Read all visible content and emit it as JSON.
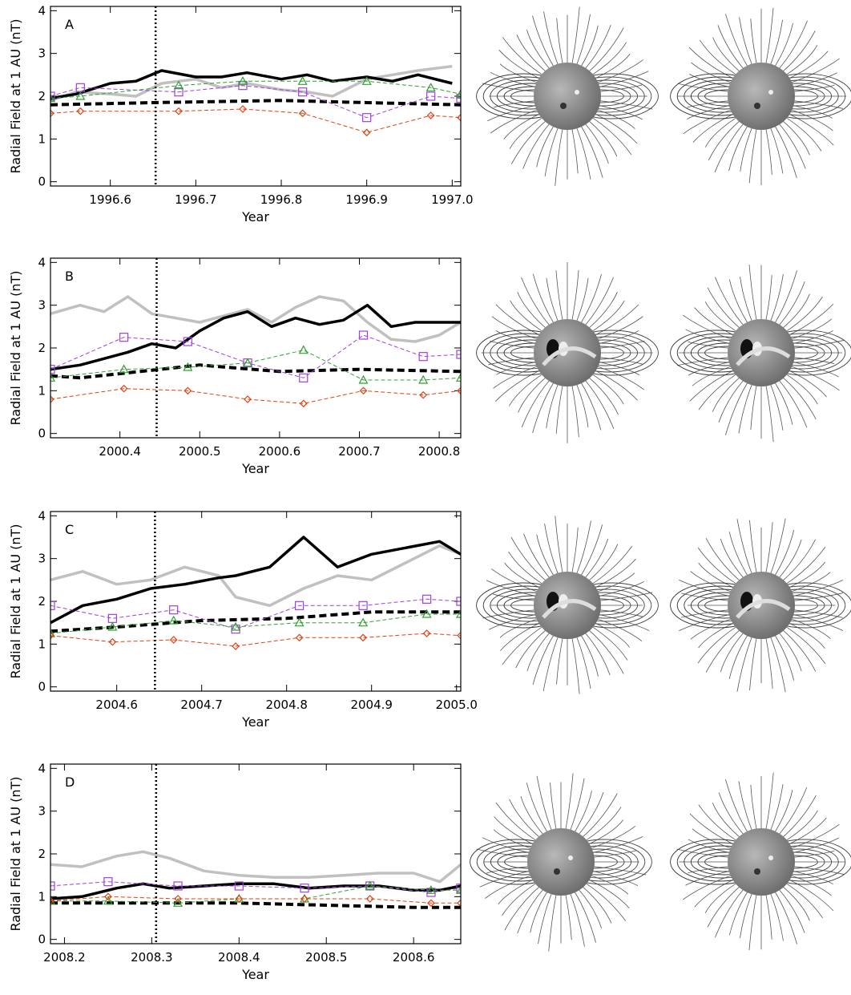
{
  "chart_data": [
    {
      "type": "line",
      "panel_label": "A",
      "xlabel": "Year",
      "ylabel": "Radial Field at 1 AU (nT)",
      "xlim": [
        1996.53,
        1997.01
      ],
      "ylim": [
        -0.1,
        4.1
      ],
      "xticks": [
        1996.6,
        1996.7,
        1996.8,
        1996.9,
        {
          "value": 1997.0,
          "label": "1997.0"
        }
      ],
      "yticks": [
        0,
        1,
        2,
        3,
        4
      ],
      "vline": 1996.653,
      "series": [
        {
          "color": "#c0c0c0",
          "style": "thick",
          "marker": "none",
          "x": [
            1996.53,
            1996.56,
            1996.6,
            1996.63,
            1996.66,
            1996.7,
            1996.73,
            1996.76,
            1996.8,
            1996.83,
            1996.86,
            1996.9,
            1996.93,
            1996.96,
            1997.0
          ],
          "values": [
            1.9,
            2.1,
            2.05,
            2.0,
            2.3,
            2.4,
            2.2,
            2.3,
            2.15,
            2.1,
            2.0,
            2.4,
            2.5,
            2.6,
            2.7
          ]
        },
        {
          "color": "#000000",
          "style": "thick",
          "marker": "none",
          "x": [
            1996.53,
            1996.56,
            1996.6,
            1996.63,
            1996.66,
            1996.7,
            1996.73,
            1996.76,
            1996.8,
            1996.83,
            1996.86,
            1996.9,
            1996.93,
            1996.96,
            1997.0
          ],
          "values": [
            1.95,
            2.05,
            2.3,
            2.35,
            2.6,
            2.45,
            2.45,
            2.55,
            2.4,
            2.5,
            2.35,
            2.45,
            2.35,
            2.5,
            2.3
          ]
        },
        {
          "color": "#000000",
          "style": "thick-dashed",
          "marker": "none",
          "x": [
            1996.53,
            1996.65,
            1996.8,
            1996.9,
            1997.01
          ],
          "values": [
            1.8,
            1.85,
            1.9,
            1.85,
            1.8
          ]
        },
        {
          "color": "#a040e0",
          "style": "dashed",
          "marker": "square",
          "x": [
            1996.53,
            1996.565,
            1996.68,
            1996.755,
            1996.825,
            1996.9,
            1996.975,
            1997.01
          ],
          "values": [
            2.0,
            2.2,
            2.1,
            2.25,
            2.1,
            1.5,
            2.0,
            1.95
          ]
        },
        {
          "color": "#30a030",
          "style": "dashed",
          "marker": "triangle",
          "x": [
            1996.53,
            1996.565,
            1996.68,
            1996.755,
            1996.825,
            1996.9,
            1996.975,
            1997.01
          ],
          "values": [
            1.95,
            2.0,
            2.25,
            2.35,
            2.35,
            2.35,
            2.2,
            2.05
          ]
        },
        {
          "color": "#e04010",
          "style": "dashed",
          "marker": "diamond",
          "x": [
            1996.53,
            1996.565,
            1996.68,
            1996.755,
            1996.825,
            1996.9,
            1996.975,
            1997.01
          ],
          "values": [
            1.6,
            1.65,
            1.65,
            1.7,
            1.6,
            1.15,
            1.55,
            1.5
          ]
        }
      ]
    },
    {
      "type": "line",
      "panel_label": "B",
      "xlabel": "Year",
      "ylabel": "Radial Field at 1 AU (nT)",
      "xlim": [
        2000.313,
        2000.827
      ],
      "ylim": [
        -0.1,
        4.1
      ],
      "xticks": [
        2000.4,
        2000.5,
        2000.6,
        2000.7,
        2000.8
      ],
      "yticks": [
        0,
        1,
        2,
        3,
        4
      ],
      "vline": 2000.446,
      "series": [
        {
          "color": "#c0c0c0",
          "style": "thick",
          "marker": "none",
          "x": [
            2000.313,
            2000.35,
            2000.38,
            2000.41,
            2000.44,
            2000.47,
            2000.5,
            2000.53,
            2000.56,
            2000.59,
            2000.62,
            2000.65,
            2000.68,
            2000.71,
            2000.74,
            2000.77,
            2000.8,
            2000.827
          ],
          "values": [
            2.8,
            3.0,
            2.85,
            3.2,
            2.8,
            2.7,
            2.6,
            2.75,
            2.9,
            2.6,
            2.95,
            3.2,
            3.1,
            2.6,
            2.2,
            2.15,
            2.3,
            2.6
          ]
        },
        {
          "color": "#000000",
          "style": "thick",
          "marker": "none",
          "x": [
            2000.313,
            2000.35,
            2000.38,
            2000.41,
            2000.44,
            2000.47,
            2000.5,
            2000.53,
            2000.56,
            2000.59,
            2000.62,
            2000.65,
            2000.68,
            2000.71,
            2000.74,
            2000.77,
            2000.8,
            2000.827
          ],
          "values": [
            1.5,
            1.6,
            1.75,
            1.9,
            2.1,
            2.0,
            2.4,
            2.7,
            2.85,
            2.5,
            2.7,
            2.55,
            2.65,
            3.0,
            2.5,
            2.6,
            2.6,
            2.6
          ]
        },
        {
          "color": "#000000",
          "style": "thick-dashed",
          "marker": "none",
          "x": [
            2000.313,
            2000.35,
            2000.45,
            2000.5,
            2000.6,
            2000.7,
            2000.827
          ],
          "values": [
            1.35,
            1.3,
            1.5,
            1.6,
            1.45,
            1.5,
            1.45
          ]
        },
        {
          "color": "#a040e0",
          "style": "dashed",
          "marker": "square",
          "x": [
            2000.313,
            2000.405,
            2000.485,
            2000.56,
            2000.63,
            2000.705,
            2000.78,
            2000.827
          ],
          "values": [
            1.5,
            2.25,
            2.15,
            1.65,
            1.3,
            2.3,
            1.8,
            1.85
          ]
        },
        {
          "color": "#30a030",
          "style": "dashed",
          "marker": "triangle",
          "x": [
            2000.313,
            2000.405,
            2000.485,
            2000.56,
            2000.63,
            2000.705,
            2000.78,
            2000.827
          ],
          "values": [
            1.3,
            1.5,
            1.55,
            1.65,
            1.95,
            1.25,
            1.25,
            1.3
          ]
        },
        {
          "color": "#e04010",
          "style": "dashed",
          "marker": "diamond",
          "x": [
            2000.313,
            2000.405,
            2000.485,
            2000.56,
            2000.63,
            2000.705,
            2000.78,
            2000.827
          ],
          "values": [
            0.8,
            1.05,
            1.0,
            0.8,
            0.7,
            1.0,
            0.9,
            1.0
          ]
        }
      ]
    },
    {
      "type": "line",
      "panel_label": "C",
      "xlabel": "Year",
      "ylabel": "Radial Field at 1 AU (nT)",
      "xlim": [
        2004.522,
        2005.005
      ],
      "ylim": [
        -0.1,
        4.1
      ],
      "xticks": [
        2004.6,
        2004.7,
        2004.8,
        2004.9,
        {
          "value": 2005.0,
          "label": "2005.0"
        }
      ],
      "yticks": [
        0,
        1,
        2,
        3,
        4
      ],
      "vline": 2004.645,
      "series": [
        {
          "color": "#c0c0c0",
          "style": "thick",
          "marker": "none",
          "x": [
            2004.522,
            2004.56,
            2004.6,
            2004.64,
            2004.68,
            2004.72,
            2004.74,
            2004.78,
            2004.82,
            2004.86,
            2004.9,
            2004.94,
            2004.98,
            2005.005
          ],
          "values": [
            2.5,
            2.7,
            2.4,
            2.5,
            2.8,
            2.6,
            2.1,
            1.9,
            2.3,
            2.6,
            2.5,
            2.9,
            3.3,
            3.1
          ]
        },
        {
          "color": "#000000",
          "style": "thick",
          "marker": "none",
          "x": [
            2004.522,
            2004.56,
            2004.6,
            2004.64,
            2004.68,
            2004.72,
            2004.74,
            2004.78,
            2004.82,
            2004.86,
            2004.9,
            2004.94,
            2004.98,
            2005.005
          ],
          "values": [
            1.5,
            1.9,
            2.05,
            2.3,
            2.4,
            2.55,
            2.6,
            2.8,
            3.5,
            2.8,
            3.1,
            3.25,
            3.4,
            3.1
          ]
        },
        {
          "color": "#000000",
          "style": "thick-dashed",
          "marker": "none",
          "x": [
            2004.522,
            2004.6,
            2004.7,
            2004.8,
            2004.9,
            2005.005
          ],
          "values": [
            1.3,
            1.4,
            1.55,
            1.6,
            1.75,
            1.75
          ]
        },
        {
          "color": "#a040e0",
          "style": "dashed",
          "marker": "square",
          "x": [
            2004.522,
            2004.595,
            2004.667,
            2004.74,
            2004.815,
            2004.89,
            2004.965,
            2005.005
          ],
          "values": [
            1.9,
            1.6,
            1.8,
            1.35,
            1.9,
            1.9,
            2.05,
            2.0
          ]
        },
        {
          "color": "#30a030",
          "style": "dashed",
          "marker": "triangle",
          "x": [
            2004.522,
            2004.595,
            2004.667,
            2004.74,
            2004.815,
            2004.89,
            2004.965,
            2005.005
          ],
          "values": [
            1.25,
            1.4,
            1.55,
            1.4,
            1.5,
            1.5,
            1.7,
            1.7
          ]
        },
        {
          "color": "#e04010",
          "style": "dashed",
          "marker": "diamond",
          "x": [
            2004.522,
            2004.595,
            2004.667,
            2004.74,
            2004.815,
            2004.89,
            2004.965,
            2005.005
          ],
          "values": [
            1.2,
            1.05,
            1.1,
            0.95,
            1.15,
            1.15,
            1.25,
            1.2
          ]
        }
      ]
    },
    {
      "type": "line",
      "panel_label": "D",
      "xlabel": "Year",
      "ylabel": "Radial Field at 1 AU (nT)",
      "xlim": [
        2008.184,
        2008.654
      ],
      "ylim": [
        -0.1,
        4.1
      ],
      "xticks": [
        2008.2,
        2008.3,
        2008.4,
        2008.5,
        2008.6
      ],
      "yticks": [
        0,
        1,
        2,
        3,
        4
      ],
      "vline": 2008.305,
      "series": [
        {
          "color": "#c0c0c0",
          "style": "thick",
          "marker": "none",
          "x": [
            2008.184,
            2008.22,
            2008.26,
            2008.29,
            2008.32,
            2008.36,
            2008.4,
            2008.44,
            2008.48,
            2008.52,
            2008.56,
            2008.6,
            2008.63,
            2008.654
          ],
          "values": [
            1.75,
            1.7,
            1.95,
            2.05,
            1.9,
            1.6,
            1.5,
            1.45,
            1.45,
            1.5,
            1.55,
            1.55,
            1.35,
            1.75
          ]
        },
        {
          "color": "#000000",
          "style": "thick",
          "marker": "none",
          "x": [
            2008.184,
            2008.22,
            2008.26,
            2008.29,
            2008.32,
            2008.36,
            2008.4,
            2008.44,
            2008.48,
            2008.52,
            2008.56,
            2008.6,
            2008.63,
            2008.654
          ],
          "values": [
            0.95,
            1.0,
            1.2,
            1.3,
            1.2,
            1.25,
            1.3,
            1.3,
            1.2,
            1.25,
            1.25,
            1.15,
            1.15,
            1.25
          ]
        },
        {
          "color": "#000000",
          "style": "thick-dashed",
          "marker": "none",
          "x": [
            2008.184,
            2008.3,
            2008.4,
            2008.5,
            2008.6,
            2008.654
          ],
          "values": [
            0.85,
            0.85,
            0.85,
            0.8,
            0.75,
            0.75
          ]
        },
        {
          "color": "#a040e0",
          "style": "dashed",
          "marker": "square",
          "x": [
            2008.184,
            2008.25,
            2008.33,
            2008.4,
            2008.475,
            2008.55,
            2008.62,
            2008.654
          ],
          "values": [
            1.25,
            1.35,
            1.25,
            1.25,
            1.2,
            1.25,
            1.1,
            1.2
          ]
        },
        {
          "color": "#30a030",
          "style": "dashed",
          "marker": "triangle",
          "x": [
            2008.184,
            2008.25,
            2008.33,
            2008.4,
            2008.475,
            2008.55,
            2008.62,
            2008.654
          ],
          "values": [
            0.9,
            0.9,
            0.85,
            0.95,
            0.95,
            1.25,
            1.15,
            1.15
          ]
        },
        {
          "color": "#e04010",
          "style": "dashed",
          "marker": "diamond",
          "x": [
            2008.184,
            2008.25,
            2008.33,
            2008.4,
            2008.475,
            2008.55,
            2008.62,
            2008.654
          ],
          "values": [
            0.9,
            1.0,
            0.95,
            0.95,
            0.95,
            0.95,
            0.85,
            0.85
          ]
        }
      ]
    }
  ]
}
